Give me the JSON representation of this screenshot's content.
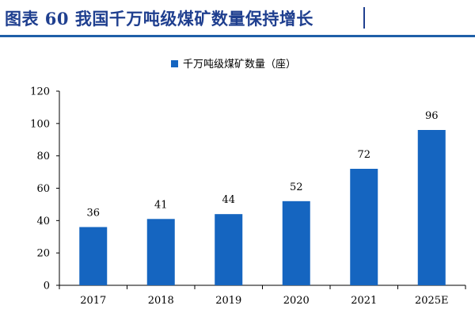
{
  "header": {
    "title": "图表 60  我国千万吨级煤矿数量保持增长"
  },
  "colors": {
    "bar": "#1565c0",
    "title": "#1f3f8f",
    "axis": "#000000"
  },
  "chart_data": {
    "type": "bar",
    "title": "",
    "categories": [
      "2017",
      "2018",
      "2019",
      "2020",
      "2021",
      "2025E"
    ],
    "series": [
      {
        "name": "千万吨级煤矿数量（座）",
        "values": [
          36,
          41,
          44,
          52,
          72,
          96
        ]
      }
    ],
    "data_labels": [
      "36",
      "41",
      "44",
      "52",
      "72",
      "96"
    ],
    "yticks": [
      "0",
      "20",
      "40",
      "60",
      "80",
      "100",
      "120"
    ],
    "ylim": [
      0,
      120
    ],
    "xlabel": "",
    "ylabel": "",
    "legend_position": "top-center",
    "grid": false
  }
}
